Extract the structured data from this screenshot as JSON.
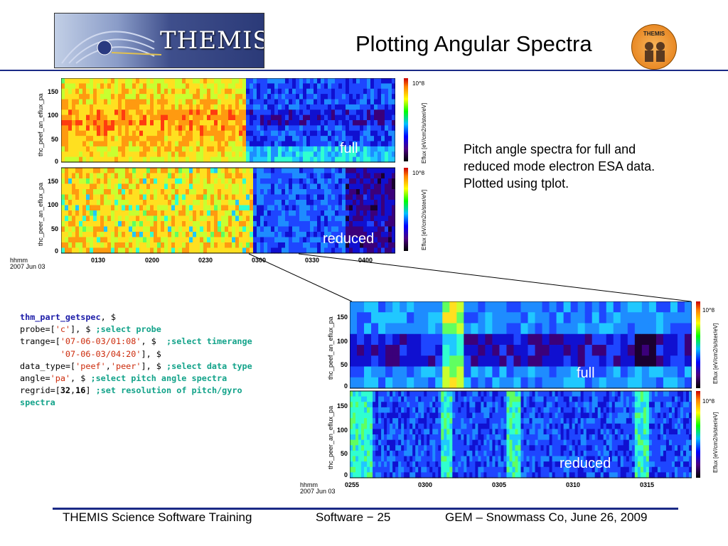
{
  "header": {
    "logo_text": "THEMIS",
    "title": "Plotting Angular Spectra",
    "badge_text": "THEMIS"
  },
  "description": "Pitch angle spectra for full and reduced mode electron ESA data. Plotted using tplot.",
  "code": {
    "line1_kw": "thm_part_getspec",
    "line1_rest": ", $",
    "line2_pre": "probe=[",
    "line2_str": "'c'",
    "line2_post": "], $ ",
    "line2_cmt": ";select probe",
    "line3_pre": "trange=[",
    "line3_str": "'07-06-03/01:08'",
    "line3_post": ", $  ",
    "line3_cmt": ";select timerange",
    "line4_pre": "        ",
    "line4_str": "'07-06-03/04:20'",
    "line4_post": "], $",
    "line5_pre": "data_type=[",
    "line5_str1": "'peef'",
    "line5_sep": ",",
    "line5_str2": "'peer'",
    "line5_post": "], $ ",
    "line5_cmt": ";select data type",
    "line6_pre": "angle=",
    "line6_str": "'pa'",
    "line6_post": ", $ ",
    "line6_cmt": ";select pitch angle spectra",
    "line7_pre": "regrid=[",
    "line7_n1": "32",
    "line7_sep": ",",
    "line7_n2": "16",
    "line7_post": "] ",
    "line7_cmt": ";set resolution of pitch/gyro",
    "line8_cmt": "spectra"
  },
  "chart_data": [
    {
      "type": "heatmap",
      "panels": [
        {
          "ylabel": "thc_peef_an_eflux_pa",
          "overlay": "full",
          "yticks": [
            "150",
            "100",
            "50",
            "0"
          ],
          "colorbar_label": "Eflux [eV/cm2/s/ster/eV]",
          "colorbar_max": "10^8"
        },
        {
          "ylabel": "thc_peer_an_eflux_pa",
          "overlay": "reduced",
          "yticks": [
            "150",
            "100",
            "50",
            "0"
          ],
          "colorbar_label": "Eflux [eV/cm2/s/ster/eV]",
          "colorbar_max": "10^8"
        }
      ],
      "xlabel_line1": "hhmm",
      "xlabel_line2": "2007 Jun 03",
      "xticks": [
        "0130",
        "0200",
        "0230",
        "0300",
        "0330",
        "0400"
      ],
      "ylim": [
        0,
        180
      ]
    },
    {
      "type": "heatmap",
      "panels": [
        {
          "ylabel": "thc_peef_an_eflux_pa",
          "overlay": "full",
          "yticks": [
            "150",
            "100",
            "50",
            "0"
          ],
          "colorbar_label": "Eflux [eV/cm2/s/ster/eV]",
          "colorbar_max": "10^8"
        },
        {
          "ylabel": "thc_peer_an_eflux_pa",
          "overlay": "reduced",
          "yticks": [
            "150",
            "100",
            "50",
            "0"
          ],
          "colorbar_label": "Eflux [eV/cm2/s/ster/eV]",
          "colorbar_max": "10^8"
        }
      ],
      "xlabel_line1": "hhmm",
      "xlabel_line2": "2007 Jun 03",
      "xticks": [
        "0255",
        "0300",
        "0305",
        "0310",
        "0315"
      ],
      "ylim": [
        0,
        180
      ]
    }
  ],
  "footer": {
    "left": "THEMIS Science Software Training",
    "center": "Software − 25",
    "right": "GEM – Snowmass Co, June 26, 2009"
  }
}
